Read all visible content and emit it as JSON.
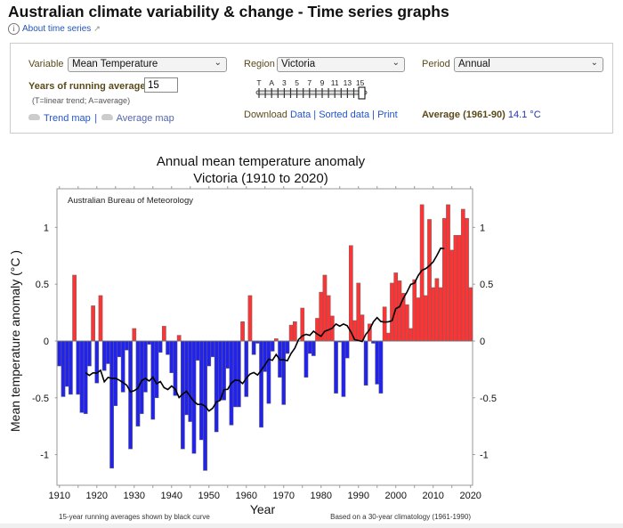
{
  "header": {
    "title": "Australian climate variability & change - Time series graphs",
    "about_link": "About time series",
    "info_icon": "info-circle-icon",
    "external_icon": "external-link-icon"
  },
  "controls": {
    "variable_label": "Variable",
    "variable_value": "Mean Temperature",
    "region_label": "Region",
    "region_value": "Victoria",
    "period_label": "Period",
    "period_value": "Annual",
    "running_avg_label": "Years of running average",
    "running_avg_value": "15",
    "running_avg_hint": "(T=linear trend; A=average)",
    "slider_labels": [
      "T",
      "A",
      "3",
      "5",
      "7",
      "9",
      "11",
      "13",
      "15"
    ],
    "slider_selected": "15",
    "trend_map": "Trend map",
    "average_map": "Average map",
    "download_label": "Download",
    "data_link": "Data",
    "sorted_link": "Sorted data",
    "print_link": "Print",
    "average_label": "Average (1961-90)",
    "average_value": "14.1 °C",
    "separator": "|"
  },
  "chart_data": {
    "type": "bar",
    "title": "Annual mean temperature anomaly",
    "subtitle": "Victoria (1910 to 2020)",
    "xlabel": "Year",
    "ylabel": "Mean temperature anomaly (°C )",
    "watermark": "Australian Bureau of Meteorology",
    "footnote_left": "15-year running averages shown by black curve",
    "footnote_right": "Based on a 30-year climatology (1961-1990)",
    "xlim": [
      1909.5,
      2020.5
    ],
    "ylim": [
      -1.27,
      1.34
    ],
    "x_ticks": [
      "1910",
      "1920",
      "1930",
      "1940",
      "1950",
      "1960",
      "1970",
      "1980",
      "1990",
      "2000",
      "2010",
      "2020"
    ],
    "y_ticks": [
      "1",
      "0.5",
      "0",
      "-0.5",
      "-1"
    ],
    "y_tick_values": [
      1,
      0.5,
      0,
      -0.5,
      -1
    ],
    "colors": {
      "positive": "#ff3333",
      "negative": "#2222ee",
      "running_average": "#000000"
    },
    "running_average_window": 15,
    "start_year": 1910,
    "values": [
      -0.22,
      -0.49,
      -0.4,
      -0.47,
      0.58,
      -0.47,
      -0.63,
      -0.64,
      -0.22,
      0.31,
      -0.37,
      0.4,
      -0.26,
      -0.2,
      -1.12,
      -0.57,
      -0.14,
      -0.45,
      -0.08,
      -0.95,
      0.11,
      -0.75,
      -0.64,
      -0.45,
      -0.03,
      -0.69,
      -0.5,
      -0.1,
      0.13,
      -0.12,
      -0.28,
      -0.48,
      0.05,
      -0.95,
      -0.65,
      -0.71,
      -0.99,
      -0.17,
      -0.87,
      -1.14,
      -0.22,
      -0.14,
      -0.8,
      -0.52,
      -0.52,
      -0.24,
      -0.74,
      -0.58,
      -0.58,
      0.17,
      -0.49,
      0.4,
      -0.12,
      -0.02,
      -0.76,
      -0.27,
      -0.55,
      -0.09,
      0.02,
      -0.32,
      -0.56,
      -0.11,
      0.14,
      0.17,
      0.0,
      0.29,
      -0.32,
      -0.11,
      -0.13,
      0.2,
      0.43,
      0.58,
      0.4,
      0.22,
      -0.46,
      -0.01,
      -0.49,
      -0.15,
      0.84,
      0.18,
      0.51,
      0.23,
      -0.39,
      0.15,
      -0.02,
      -0.38,
      -0.46,
      0.3,
      0.07,
      0.51,
      0.6,
      0.53,
      0.42,
      0.32,
      0.11,
      0.54,
      0.38,
      1.2,
      0.4,
      1.07,
      0.47,
      0.55,
      0.47,
      1.08,
      1.2,
      0.8,
      0.93,
      0.93,
      1.16,
      1.08,
      0.47
    ]
  }
}
